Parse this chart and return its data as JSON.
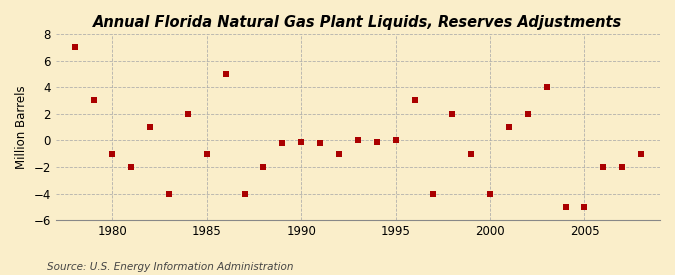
{
  "title": "Annual Florida Natural Gas Plant Liquids, Reserves Adjustments",
  "ylabel": "Million Barrels",
  "source": "Source: U.S. Energy Information Administration",
  "background_color": "#faeeca",
  "years": [
    1978,
    1979,
    1980,
    1981,
    1982,
    1983,
    1984,
    1985,
    1986,
    1987,
    1988,
    1989,
    1990,
    1991,
    1992,
    1993,
    1994,
    1995,
    1996,
    1997,
    1998,
    1999,
    2000,
    2001,
    2002,
    2003,
    2004,
    2005,
    2006,
    2007,
    2008
  ],
  "values": [
    7.0,
    3.0,
    -1.0,
    -2.0,
    1.0,
    -4.0,
    2.0,
    -1.0,
    5.0,
    -4.0,
    -2.0,
    -0.2,
    -0.1,
    -0.2,
    -1.0,
    0.0,
    -0.1,
    0.0,
    3.0,
    -4.0,
    2.0,
    -1.0,
    -4.0,
    1.0,
    2.0,
    4.0,
    -5.0,
    -5.0,
    -2.0,
    -2.0,
    -1.0
  ],
  "marker_color": "#aa0000",
  "marker_size": 18,
  "xlim": [
    1977,
    2009
  ],
  "ylim": [
    -6,
    8
  ],
  "yticks": [
    -6,
    -4,
    -2,
    0,
    2,
    4,
    6,
    8
  ],
  "xticks": [
    1980,
    1985,
    1990,
    1995,
    2000,
    2005
  ],
  "title_fontsize": 10.5,
  "label_fontsize": 8.5,
  "tick_fontsize": 8.5,
  "source_fontsize": 7.5
}
